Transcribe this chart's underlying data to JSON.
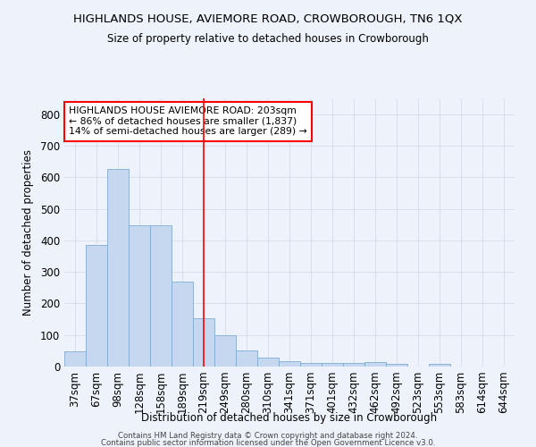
{
  "title": "HIGHLANDS HOUSE, AVIEMORE ROAD, CROWBOROUGH, TN6 1QX",
  "subtitle": "Size of property relative to detached houses in Crowborough",
  "xlabel": "Distribution of detached houses by size in Crowborough",
  "ylabel": "Number of detached properties",
  "categories": [
    "37sqm",
    "67sqm",
    "98sqm",
    "128sqm",
    "158sqm",
    "189sqm",
    "219sqm",
    "249sqm",
    "280sqm",
    "310sqm",
    "341sqm",
    "371sqm",
    "401sqm",
    "432sqm",
    "462sqm",
    "492sqm",
    "523sqm",
    "553sqm",
    "583sqm",
    "614sqm",
    "644sqm"
  ],
  "values": [
    47,
    385,
    625,
    448,
    448,
    268,
    153,
    100,
    52,
    28,
    18,
    12,
    12,
    12,
    15,
    8,
    0,
    8,
    0,
    0,
    0
  ],
  "bar_color": "#c5d8f0",
  "bar_edge_color": "#7dadd4",
  "grid_color": "#d0d8e8",
  "background_color": "#eef2fa",
  "plot_bg_color": "#eef2fa",
  "red_line_x": 6.0,
  "annotation_text": "HIGHLANDS HOUSE AVIEMORE ROAD: 203sqm\n← 86% of detached houses are smaller (1,837)\n14% of semi-detached houses are larger (289) →",
  "footnote1": "Contains HM Land Registry data © Crown copyright and database right 2024.",
  "footnote2": "Contains public sector information licensed under the Open Government Licence v3.0.",
  "ylim": [
    0,
    850
  ],
  "yticks": [
    0,
    100,
    200,
    300,
    400,
    500,
    600,
    700,
    800
  ]
}
